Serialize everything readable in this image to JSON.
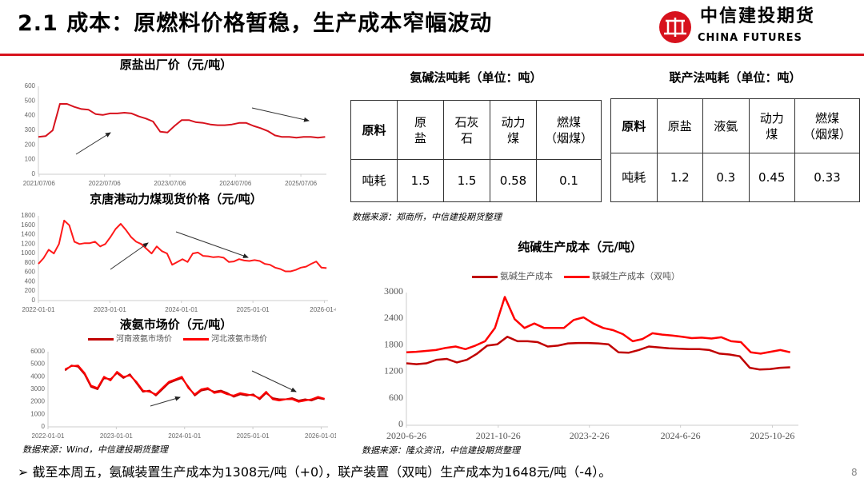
{
  "header": {
    "title": "2.1 成本：原燃料价格暂稳，生产成本窄幅波动",
    "logo_cn": "中信建投期货",
    "logo_en": "CHINA FUTURES",
    "accent": "#d7121d"
  },
  "chart_data": [
    {
      "id": "salt",
      "type": "line",
      "title": "原盐出厂价（元/吨）",
      "ylim": [
        0,
        600
      ],
      "yticks": [
        0,
        100,
        200,
        300,
        400,
        500,
        600
      ],
      "xlim": [
        2021.5,
        2025.9
      ],
      "xticks": [
        {
          "v": 2021.51,
          "label": "2021/07/06"
        },
        {
          "v": 2022.51,
          "label": "2022/07/06"
        },
        {
          "v": 2023.51,
          "label": "2023/07/06"
        },
        {
          "v": 2024.51,
          "label": "2024/07/06"
        },
        {
          "v": 2025.51,
          "label": "2025/07/06"
        }
      ],
      "series": [
        {
          "name": "原盐出厂价",
          "color": "#d7121d",
          "x0": 2021.5,
          "x1": 2025.88,
          "values": [
            255,
            260,
            300,
            480,
            480,
            460,
            445,
            440,
            410,
            405,
            415,
            415,
            420,
            415,
            395,
            380,
            360,
            290,
            285,
            330,
            370,
            370,
            355,
            350,
            340,
            335,
            335,
            340,
            350,
            350,
            330,
            315,
            295,
            265,
            255,
            255,
            250,
            255,
            255,
            250,
            255
          ]
        }
      ]
    },
    {
      "id": "coal",
      "type": "line",
      "title": "京唐港动力煤现货价格（元/吨）",
      "ylim": [
        0,
        1800
      ],
      "yticks": [
        0,
        200,
        400,
        600,
        800,
        1000,
        1200,
        1400,
        1600,
        1800
      ],
      "xlim": [
        2022.0,
        2026.05
      ],
      "xticks": [
        {
          "v": 2022.0,
          "label": "2022-01-01"
        },
        {
          "v": 2023.0,
          "label": "2023-01-01"
        },
        {
          "v": 2024.0,
          "label": "2024-01-01"
        },
        {
          "v": 2025.0,
          "label": "2025-01-01"
        },
        {
          "v": 2026.0,
          "label": "2026-01-0"
        }
      ],
      "series": [
        {
          "name": "京唐港动力煤现货价格",
          "color": "#ff1a1a",
          "x0": 2022.0,
          "x1": 2026.03,
          "values": [
            780,
            900,
            1080,
            1000,
            1200,
            1700,
            1600,
            1250,
            1200,
            1220,
            1220,
            1250,
            1150,
            1200,
            1350,
            1520,
            1630,
            1500,
            1350,
            1250,
            1200,
            1100,
            1000,
            1150,
            1050,
            1000,
            760,
            820,
            880,
            820,
            1000,
            1020,
            950,
            940,
            920,
            930,
            910,
            820,
            830,
            880,
            850,
            840,
            860,
            840,
            780,
            760,
            700,
            670,
            620,
            620,
            650,
            700,
            720,
            780,
            830,
            700,
            690
          ]
        }
      ]
    },
    {
      "id": "ammonia",
      "type": "line",
      "title": "液氨市场价（元/吨）",
      "ylim": [
        0,
        6000
      ],
      "yticks": [
        0,
        1000,
        2000,
        3000,
        4000,
        5000,
        6000
      ],
      "xlim": [
        2022.0,
        2026.1
      ],
      "xticks": [
        {
          "v": 2022.0,
          "label": "2022-01-01"
        },
        {
          "v": 2023.0,
          "label": "2023-01-01"
        },
        {
          "v": 2024.0,
          "label": "2024-01-01"
        },
        {
          "v": 2025.0,
          "label": "2025-01-01"
        },
        {
          "v": 2026.0,
          "label": "2026-01-01"
        }
      ],
      "series": [
        {
          "name": "河南液氨市场价",
          "color": "#c00000",
          "x0": 2022.25,
          "x1": 2026.05,
          "values": [
            4500,
            4900,
            4800,
            4200,
            3200,
            3000,
            3900,
            3800,
            4300,
            3900,
            4200,
            3500,
            2800,
            2900,
            2500,
            3000,
            3500,
            3700,
            3900,
            3200,
            2500,
            2900,
            3000,
            2800,
            2900,
            2700,
            2400,
            2600,
            2500,
            2600,
            2200,
            2700,
            2300,
            2200,
            2200,
            2300,
            2100,
            2200,
            2100,
            2300,
            2200
          ]
        },
        {
          "name": "河北液氨市场价",
          "color": "#ff0000",
          "x0": 2022.25,
          "x1": 2026.05,
          "values": [
            4600,
            4850,
            4900,
            4300,
            3300,
            3100,
            4000,
            3700,
            4400,
            4000,
            4100,
            3600,
            2900,
            2800,
            2600,
            3100,
            3600,
            3800,
            4000,
            3100,
            2600,
            3000,
            3100,
            2700,
            2800,
            2600,
            2500,
            2700,
            2600,
            2500,
            2300,
            2800,
            2200,
            2100,
            2200,
            2200,
            2000,
            2100,
            2200,
            2400,
            2250
          ]
        }
      ]
    },
    {
      "id": "soda",
      "type": "line",
      "title": "纯碱生产成本（元/吨）",
      "ylim": [
        0,
        3000
      ],
      "yticks": [
        0,
        600,
        1200,
        1800,
        2400,
        3000
      ],
      "xlim": [
        2020.48,
        2026.2
      ],
      "xticks": [
        {
          "v": 2020.48,
          "label": "2020-6-26"
        },
        {
          "v": 2021.82,
          "label": "2021-10-26"
        },
        {
          "v": 2023.15,
          "label": "2023-2-26"
        },
        {
          "v": 2024.48,
          "label": "2024-6-26"
        },
        {
          "v": 2025.82,
          "label": "2025-10-26"
        }
      ],
      "series": [
        {
          "name": "氨碱生产成本",
          "color": "#c00000",
          "x0": 2020.48,
          "x1": 2026.08,
          "values": [
            1400,
            1380,
            1400,
            1480,
            1500,
            1420,
            1480,
            1620,
            1800,
            1830,
            2000,
            1900,
            1900,
            1880,
            1780,
            1800,
            1850,
            1860,
            1860,
            1850,
            1830,
            1650,
            1640,
            1700,
            1780,
            1760,
            1740,
            1730,
            1720,
            1720,
            1700,
            1620,
            1600,
            1560,
            1300,
            1260,
            1270,
            1300,
            1310
          ]
        },
        {
          "name": "联碱生产成本（双吨）",
          "color": "#ff0000",
          "x0": 2020.48,
          "x1": 2026.08,
          "values": [
            1650,
            1660,
            1680,
            1700,
            1750,
            1780,
            1720,
            1800,
            1900,
            2200,
            2900,
            2400,
            2200,
            2300,
            2200,
            2200,
            2200,
            2380,
            2440,
            2300,
            2200,
            2150,
            2060,
            1900,
            1950,
            2080,
            2050,
            2030,
            2000,
            1970,
            1980,
            1960,
            1990,
            1900,
            1880,
            1650,
            1620,
            1660,
            1700,
            1650
          ]
        }
      ]
    }
  ],
  "tables": {
    "ammonia_soda": {
      "title": "氨碱法吨耗（单位：吨）",
      "header": [
        "原料",
        "原\n盐",
        "石灰\n石",
        "动力\n煤",
        "燃煤\n（烟煤）"
      ],
      "row": [
        "吨耗",
        "1.5",
        "1.5",
        "0.58",
        "0.1"
      ]
    },
    "joint": {
      "title": "联产法吨耗（单位：吨）",
      "header": [
        "原料",
        "原盐",
        "液氨",
        "动力\n煤",
        "燃煤\n（烟煤）"
      ],
      "row": [
        "吨耗",
        "1.2",
        "0.3",
        "0.45",
        "0.33"
      ]
    },
    "source": "数据来源：郑商所，中信建投期货整理"
  },
  "sources": {
    "left": "数据来源：Wind，中信建投期货整理",
    "right": "数据来源：隆众资讯，中信建投期货整理"
  },
  "footer": {
    "bullet": "➢  截至本周五，氨碱装置生产成本为1308元/吨（+0），联产装置（双吨）生产成本为1648元/吨（-4）。",
    "page": "8"
  }
}
